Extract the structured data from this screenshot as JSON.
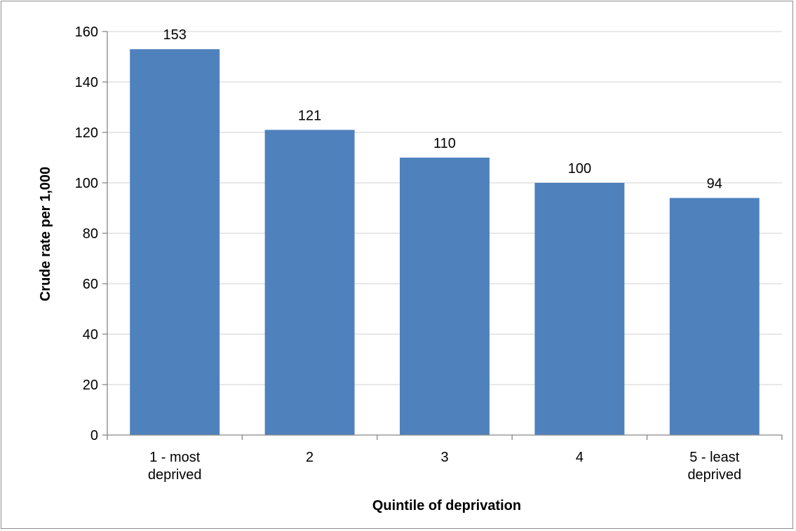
{
  "chart_data": {
    "type": "bar",
    "title": "",
    "xlabel": "Quintile of deprivation",
    "ylabel": "Crude rate per 1,000",
    "categories": [
      [
        "1 - most",
        "deprived"
      ],
      [
        "2"
      ],
      [
        "3"
      ],
      [
        "4"
      ],
      [
        "5 - least",
        "deprived"
      ]
    ],
    "values": [
      153,
      121,
      110,
      100,
      94
    ],
    "data_labels": [
      "153",
      "121",
      "110",
      "100",
      "94"
    ],
    "ylim": [
      0,
      160
    ],
    "yticks": [
      0,
      20,
      40,
      60,
      80,
      100,
      120,
      140,
      160
    ],
    "ytick_labels": [
      "0",
      "20",
      "40",
      "60",
      "80",
      "100",
      "120",
      "140",
      "160"
    ],
    "grid": "horizontal",
    "legend": "none",
    "bar_color": "#4f81bd",
    "grid_color": "#d9d9d9",
    "axis_color": "#868686"
  }
}
